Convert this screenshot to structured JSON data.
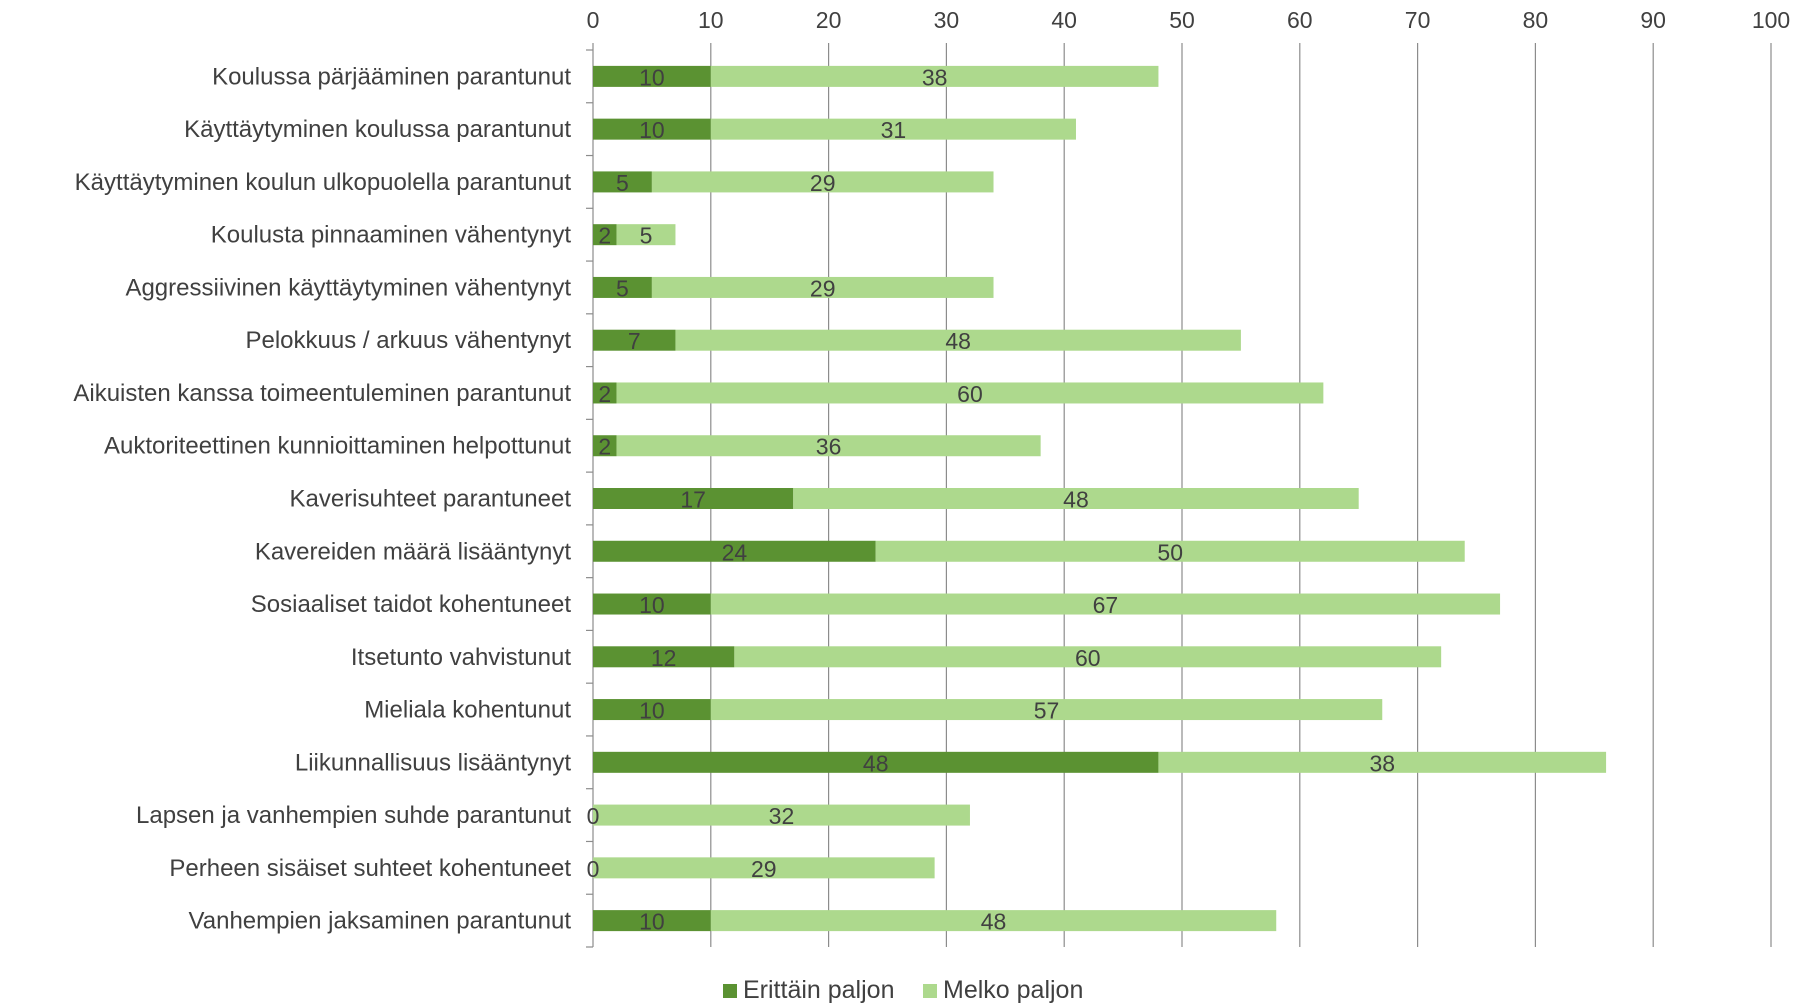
{
  "chart_data": {
    "type": "bar",
    "orientation": "horizontal",
    "stacked": true,
    "title": "",
    "xlabel": "",
    "ylabel": "",
    "xlim": [
      0,
      100
    ],
    "x_ticks": [
      0,
      10,
      20,
      30,
      40,
      50,
      60,
      70,
      80,
      90,
      100
    ],
    "grid": "vertical",
    "legend_position": "bottom",
    "categories": [
      "Koulussa pärjääminen parantunut",
      "Käyttäytyminen koulussa parantunut",
      "Käyttäytyminen koulun ulkopuolella parantunut",
      "Koulusta pinnaaminen vähentynyt",
      "Aggressiivinen käyttäytyminen vähentynyt",
      "Pelokkuus / arkuus vähentynyt",
      "Aikuisten kanssa toimeentuleminen parantunut",
      "Auktoriteettinen kunnioittaminen helpottunut",
      "Kaverisuhteet parantuneet",
      "Kavereiden määrä lisääntynyt",
      "Sosiaaliset taidot kohentuneet",
      "Itsetunto vahvistunut",
      "Mieliala kohentunut",
      "Liikunnallisuus lisääntynyt",
      "Lapsen ja vanhempien suhde parantunut",
      "Perheen sisäiset suhteet kohentuneet",
      "Vanhempien jaksaminen parantunut"
    ],
    "series": [
      {
        "name": "Erittäin paljon",
        "color": "#5b9232",
        "values": [
          10,
          10,
          5,
          2,
          5,
          7,
          2,
          2,
          17,
          24,
          10,
          12,
          10,
          48,
          0,
          0,
          10
        ]
      },
      {
        "name": "Melko paljon",
        "color": "#add98d",
        "values": [
          38,
          31,
          29,
          5,
          29,
          48,
          60,
          36,
          48,
          50,
          67,
          60,
          57,
          38,
          32,
          29,
          48
        ]
      }
    ]
  }
}
